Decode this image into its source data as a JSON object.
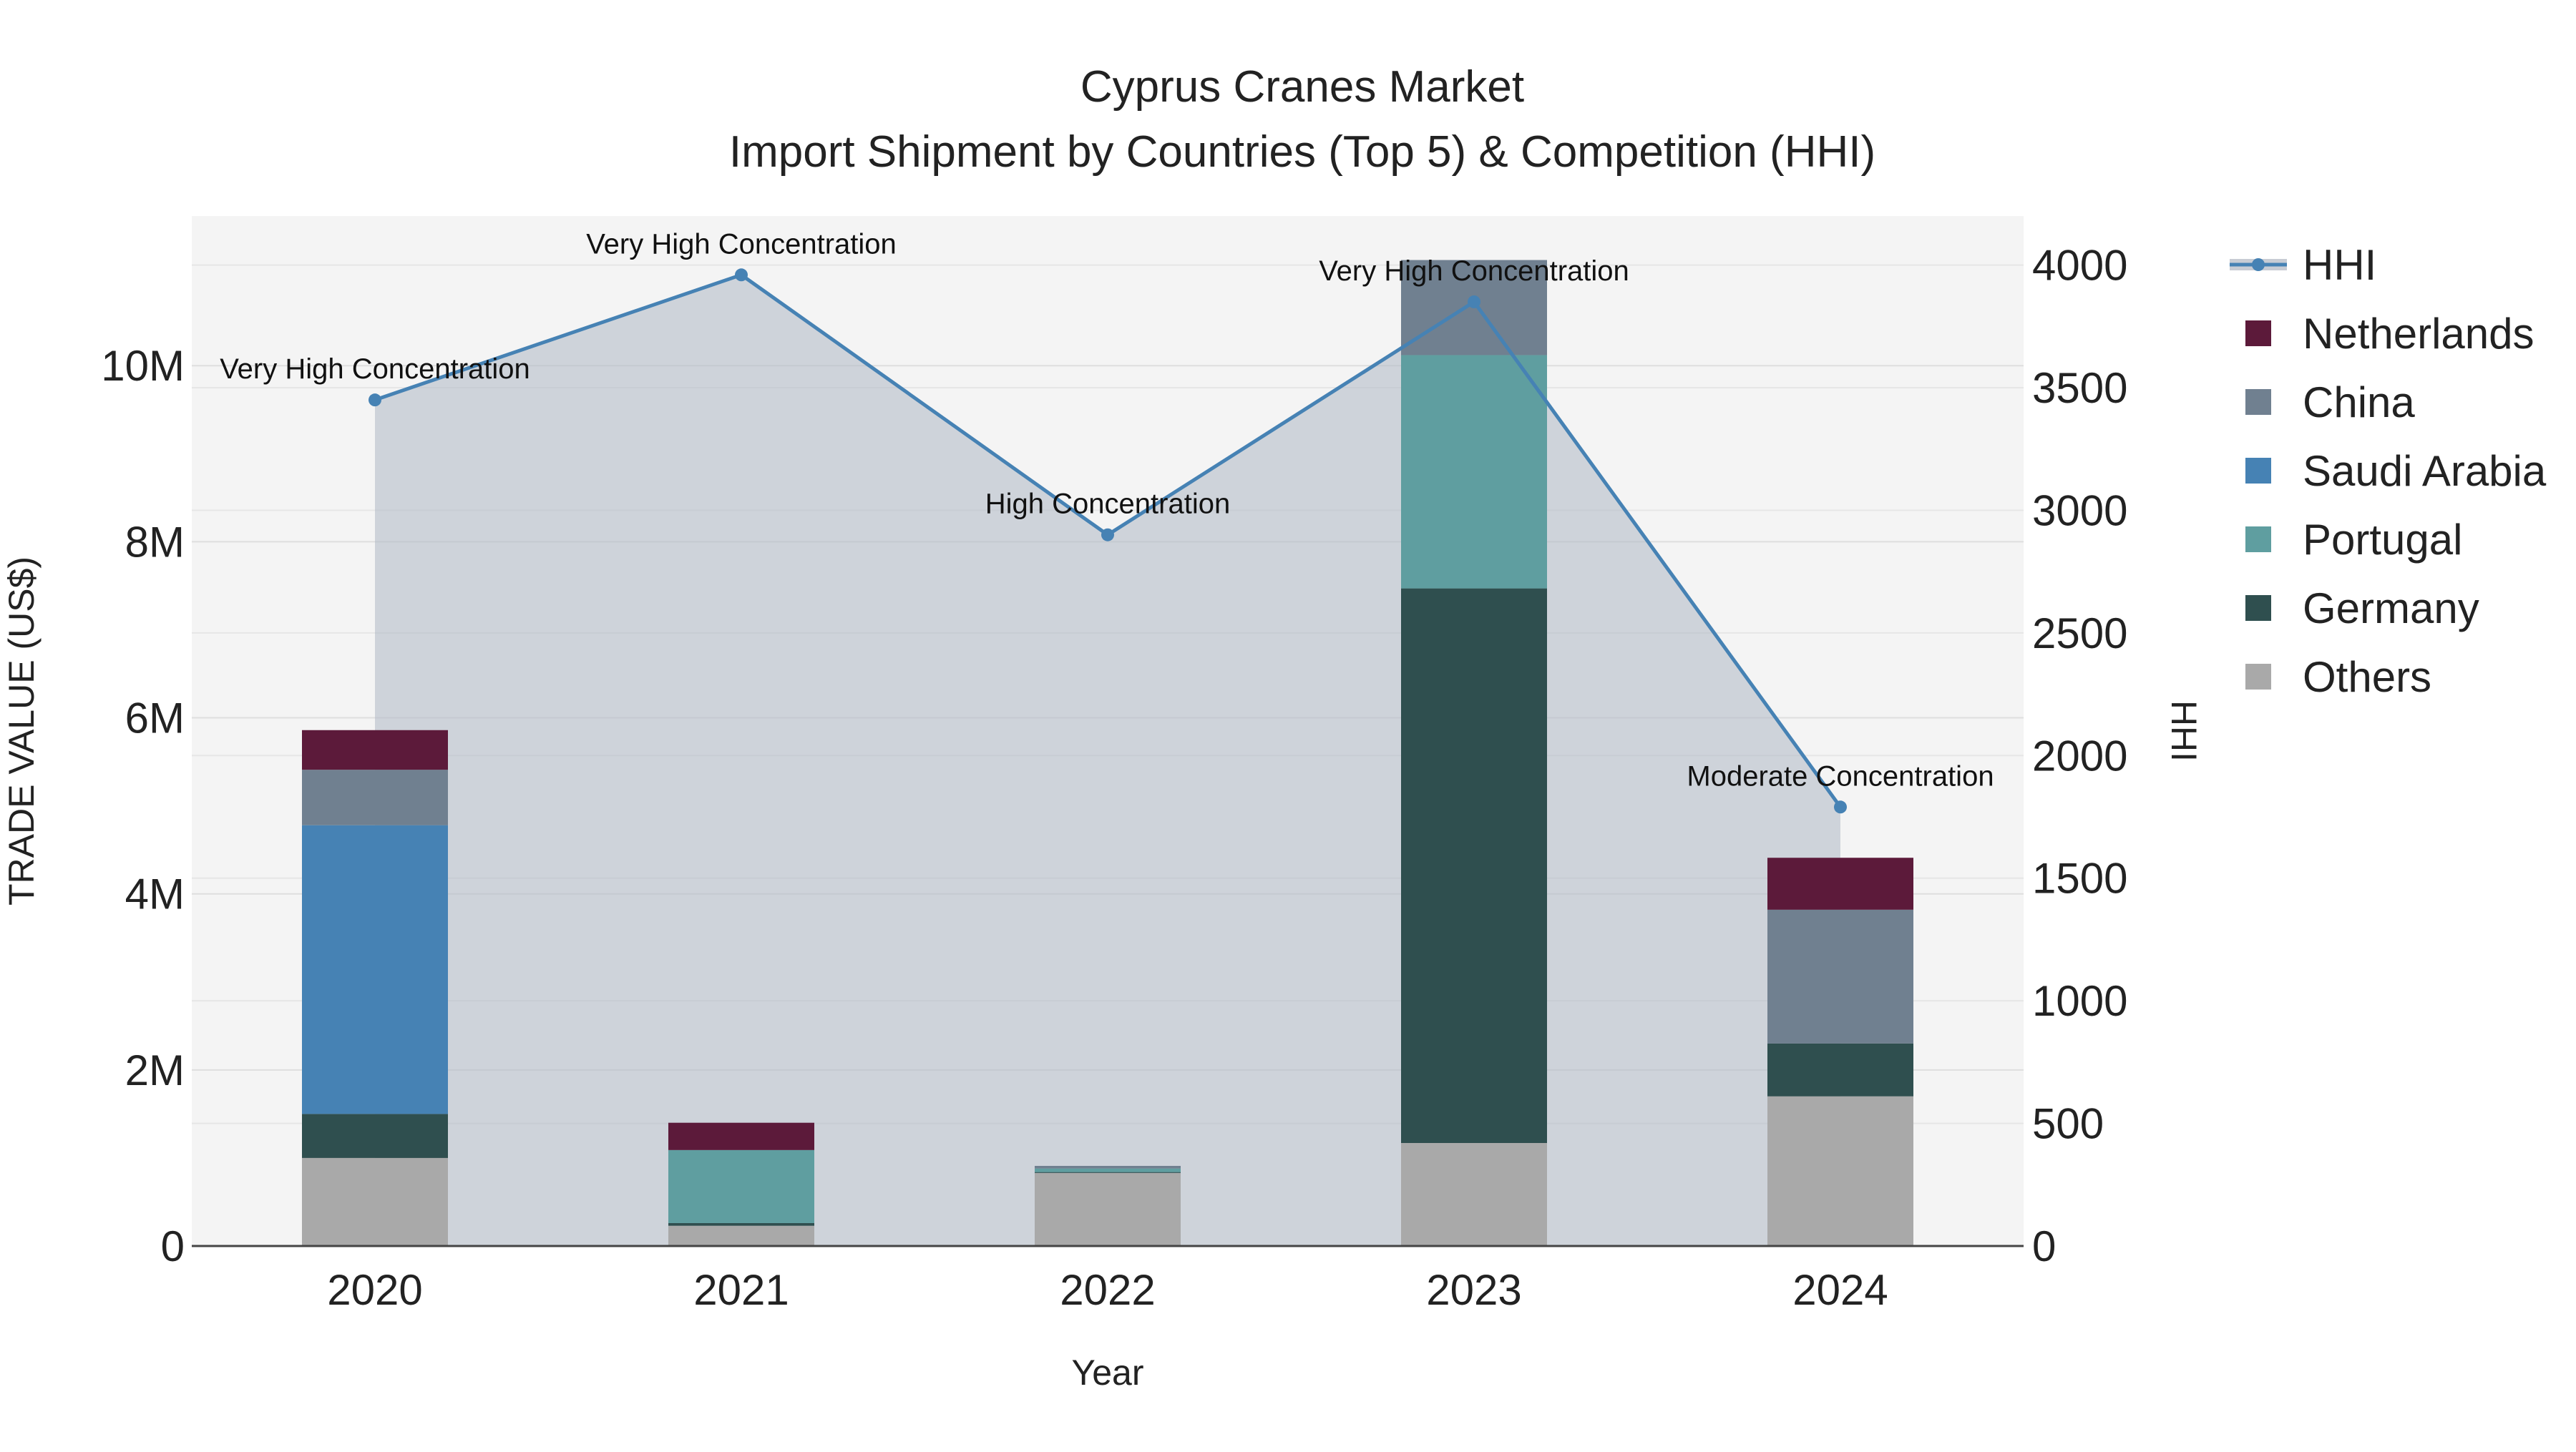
{
  "chart_data": {
    "type": "bar",
    "title": "Cyprus Cranes Market",
    "subtitle": "Import Shipment by Countries (Top 5) & Competition (HHI)",
    "xlabel": "Year",
    "ylabel": "TRADE VALUE (US$)",
    "y2label": "HHI",
    "categories": [
      "2020",
      "2021",
      "2022",
      "2023",
      "2024"
    ],
    "ylim": [
      0,
      11700000
    ],
    "y2lim": [
      0,
      4200
    ],
    "y_ticks": [
      0,
      2000000,
      4000000,
      6000000,
      8000000,
      10000000
    ],
    "y_tick_labels": [
      "0",
      "2M",
      "4M",
      "6M",
      "8M",
      "10M"
    ],
    "y2_ticks": [
      0,
      500,
      1000,
      1500,
      2000,
      2500,
      3000,
      3500,
      4000
    ],
    "y2_tick_labels": [
      "0",
      "500",
      "1000",
      "1500",
      "2000",
      "2500",
      "3000",
      "3500",
      "4000"
    ],
    "series": [
      {
        "name": "Others",
        "color": "#A9A9A9",
        "values": [
          1000000,
          230000,
          830000,
          1170000,
          1700000
        ]
      },
      {
        "name": "Germany",
        "color": "#2F4F4F",
        "values": [
          500000,
          30000,
          10000,
          6300000,
          600000
        ]
      },
      {
        "name": "Portugal",
        "color": "#5F9EA0",
        "values": [
          0,
          830000,
          40000,
          2650000,
          0
        ]
      },
      {
        "name": "Saudi Arabia",
        "color": "#4682B4",
        "values": [
          3280000,
          0,
          0,
          0,
          0
        ]
      },
      {
        "name": "China",
        "color": "#708090",
        "values": [
          630000,
          0,
          30000,
          1080000,
          1520000
        ]
      },
      {
        "name": "Netherlands",
        "color": "#5C1A3A",
        "values": [
          450000,
          310000,
          0,
          0,
          590000
        ]
      }
    ],
    "hhi": {
      "name": "HHI",
      "color": "#4682B4",
      "values": [
        3450,
        3960,
        2900,
        3850,
        1790
      ],
      "annotations": [
        "Very High Concentration",
        "Very High Concentration",
        "High Concentration",
        "Very High Concentration",
        "Moderate Concentration"
      ]
    },
    "legend_position": "right",
    "grid": true
  }
}
